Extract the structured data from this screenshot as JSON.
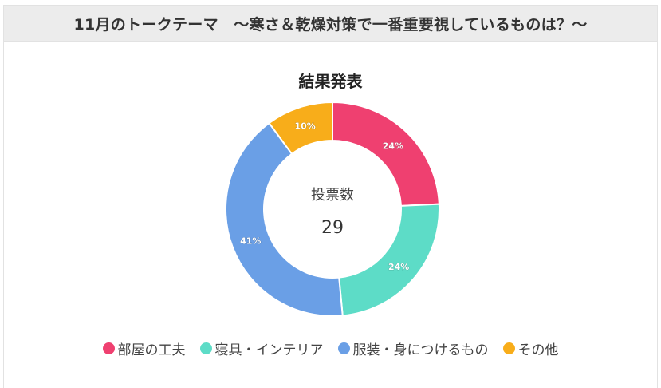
{
  "header": {
    "title": "11月のトークテーマ　〜寒さ＆乾燥対策で一番重要視しているものは？〜"
  },
  "chart_data": {
    "type": "pie",
    "title": "結果発表",
    "center_label": "投票数",
    "center_value": "29",
    "categories": [
      "部屋の工夫",
      "寝具・インテリア",
      "服装・身につけるもの",
      "その他"
    ],
    "values": [
      24,
      24,
      41,
      10
    ],
    "value_labels": [
      "24%",
      "24%",
      "41%",
      "10%"
    ],
    "colors": [
      "#ef4070",
      "#5ddcc7",
      "#6a9fe6",
      "#f8ad1a"
    ],
    "legend_position": "bottom"
  }
}
